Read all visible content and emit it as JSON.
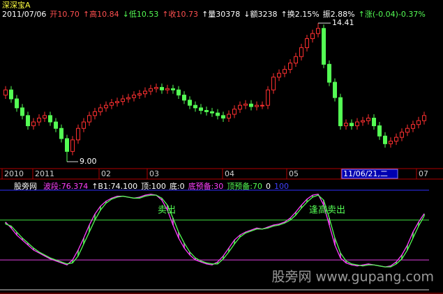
{
  "chart_data": [
    {
      "type": "candlestick",
      "title": "深深宝A",
      "info": [
        {
          "text": "2011/07/06",
          "color": "#ffffff"
        },
        {
          "text": "开10.70",
          "color": "#ff5050"
        },
        {
          "text": "↑高10.84",
          "color": "#ff5050"
        },
        {
          "text": "↓低10.53",
          "color": "#54fc54"
        },
        {
          "text": "↑收10.73",
          "color": "#ff5050"
        },
        {
          "text": "↑量30378",
          "color": "#ffffff"
        },
        {
          "text": "↓额3238",
          "color": "#ffffff"
        },
        {
          "text": "↑换2.15%",
          "color": "#ffffff"
        },
        {
          "text": "振2.88%",
          "color": "#ffffff"
        },
        {
          "text": "↑涨(-0.04)-0.37%",
          "color": "#54fc54"
        }
      ],
      "open": [
        11.6,
        11.8,
        11.45,
        11.1,
        10.8,
        10.4,
        10.55,
        10.7,
        10.8,
        10.55,
        10.3,
        9.9,
        9.4,
        9.85,
        10.3,
        10.55,
        10.8,
        10.95,
        11.1,
        11.2,
        11.3,
        11.35,
        11.45,
        11.5,
        11.6,
        11.65,
        11.75,
        11.85,
        11.9,
        11.8,
        11.85,
        11.8,
        11.6,
        11.4,
        11.2,
        11.1,
        11.0,
        10.95,
        10.9,
        10.8,
        10.7,
        10.85,
        11.05,
        11.2,
        11.25,
        11.15,
        11.2,
        11.2,
        11.8,
        12.3,
        12.45,
        12.6,
        12.85,
        13.1,
        13.45,
        13.8,
        14.0,
        14.2,
        12.8,
        12.1,
        11.5,
        10.4,
        10.5,
        10.4,
        10.55,
        10.6,
        10.7,
        10.4,
        10.0,
        9.7,
        9.8,
        9.95,
        10.15,
        10.3,
        10.45,
        10.6
      ],
      "high": [
        11.95,
        11.95,
        11.6,
        11.25,
        10.95,
        10.7,
        10.85,
        10.95,
        10.95,
        10.7,
        10.45,
        10.05,
        10.0,
        10.45,
        10.7,
        10.95,
        11.1,
        11.25,
        11.35,
        11.45,
        11.5,
        11.6,
        11.65,
        11.75,
        11.8,
        11.9,
        12.0,
        12.05,
        12.05,
        12.0,
        12.0,
        11.95,
        11.75,
        11.55,
        11.35,
        11.25,
        11.15,
        11.1,
        11.05,
        10.95,
        11.0,
        11.2,
        11.35,
        11.4,
        11.4,
        11.35,
        11.35,
        11.95,
        12.45,
        12.6,
        12.75,
        13.0,
        13.25,
        13.6,
        13.95,
        14.15,
        14.41,
        14.35,
        12.95,
        12.25,
        11.65,
        10.65,
        10.65,
        10.7,
        10.75,
        10.85,
        10.85,
        10.55,
        10.15,
        9.95,
        10.1,
        10.3,
        10.45,
        10.6,
        10.75,
        10.95
      ],
      "low": [
        11.45,
        11.3,
        10.95,
        10.65,
        10.25,
        10.25,
        10.4,
        10.55,
        10.4,
        10.15,
        9.75,
        9.0,
        9.25,
        9.7,
        10.15,
        10.4,
        10.65,
        10.8,
        10.95,
        11.05,
        11.15,
        11.2,
        11.3,
        11.35,
        11.45,
        11.5,
        11.6,
        11.7,
        11.65,
        11.65,
        11.65,
        11.45,
        11.25,
        11.05,
        10.95,
        10.85,
        10.8,
        10.75,
        10.65,
        10.55,
        10.55,
        10.7,
        10.9,
        11.05,
        11.0,
        11.0,
        11.05,
        11.05,
        11.65,
        12.15,
        12.3,
        12.45,
        12.7,
        12.95,
        13.3,
        13.65,
        13.85,
        12.65,
        11.95,
        11.35,
        10.25,
        10.25,
        10.25,
        10.25,
        10.4,
        10.45,
        10.25,
        9.85,
        9.55,
        9.55,
        9.65,
        9.8,
        10.0,
        10.15,
        10.3,
        10.45
      ],
      "close": [
        11.8,
        11.45,
        11.1,
        10.8,
        10.4,
        10.55,
        10.7,
        10.8,
        10.55,
        10.3,
        9.9,
        9.4,
        9.85,
        10.3,
        10.55,
        10.8,
        10.95,
        11.1,
        11.2,
        11.3,
        11.35,
        11.45,
        11.5,
        11.6,
        11.65,
        11.75,
        11.85,
        11.9,
        11.8,
        11.85,
        11.8,
        11.6,
        11.4,
        11.2,
        11.1,
        11.0,
        10.95,
        10.9,
        10.8,
        10.7,
        10.85,
        11.05,
        11.2,
        11.25,
        11.15,
        11.2,
        11.2,
        11.8,
        12.3,
        12.45,
        12.6,
        12.85,
        13.1,
        13.45,
        13.8,
        14.0,
        14.2,
        12.8,
        12.1,
        11.5,
        10.4,
        10.5,
        10.4,
        10.55,
        10.6,
        10.7,
        10.4,
        10.0,
        9.7,
        9.8,
        9.95,
        10.15,
        10.3,
        10.45,
        10.6,
        10.8
      ],
      "up_color": "#ff3030",
      "down_color": "#54fc54",
      "ylim": [
        8.73,
        14.82
      ],
      "max_label": "14.41",
      "min_label": "9.00",
      "x_labels": [
        "2010",
        "2011",
        "02",
        "03",
        "04",
        "05",
        "11/06/21,二",
        "07"
      ]
    },
    {
      "type": "line",
      "title": "股旁网",
      "header": [
        {
          "text": "波段:76.374",
          "color": "#ff40ff"
        },
        {
          "text": "↑B1:74.100",
          "color": "#ffffff"
        },
        {
          "text": "顶:100",
          "color": "#ffffff"
        },
        {
          "text": "底:0",
          "color": "#ffffff"
        },
        {
          "text": "底预备:30",
          "color": "#ff40ff"
        },
        {
          "text": "顶预备:70",
          "color": "#54fc54"
        },
        {
          "text": "0",
          "color": "#ffffff"
        },
        {
          "text": "100",
          "color": "#4040ff"
        }
      ],
      "series": [
        {
          "name": "波段",
          "color": "#ff40ff",
          "values": [
            68,
            62,
            55,
            50,
            45,
            40,
            37,
            34,
            31,
            29,
            27,
            25,
            30,
            40,
            52,
            65,
            76,
            84,
            89,
            92,
            94,
            94,
            93,
            92,
            93,
            95,
            96,
            95,
            90,
            80,
            65,
            52,
            42,
            35,
            30,
            28,
            26,
            25,
            28,
            34,
            42,
            50,
            55,
            58,
            60,
            62,
            61,
            63,
            65,
            66,
            68,
            72,
            78,
            85,
            91,
            95,
            96,
            85,
            65,
            45,
            32,
            27,
            25,
            24,
            25,
            26,
            25,
            24,
            23,
            24,
            28,
            35,
            45,
            58,
            68,
            76.374
          ]
        },
        {
          "name": "B1",
          "color": "#54fc54",
          "values": [
            66,
            64,
            58,
            52,
            47,
            42,
            38,
            35,
            32,
            30,
            28,
            26,
            27,
            34,
            46,
            58,
            70,
            80,
            87,
            91,
            93,
            94,
            93,
            92,
            92,
            94,
            95,
            95,
            92,
            85,
            72,
            58,
            47,
            38,
            32,
            29,
            27,
            26,
            26,
            31,
            38,
            46,
            53,
            57,
            59,
            61,
            61,
            62,
            64,
            65,
            67,
            70,
            75,
            82,
            88,
            93,
            95,
            90,
            72,
            52,
            37,
            29,
            26,
            25,
            24,
            25,
            25,
            24,
            23,
            23,
            26,
            31,
            40,
            52,
            64,
            74.1
          ]
        }
      ],
      "ref_lines": [
        {
          "value": 100,
          "color": "#3030ff"
        },
        {
          "value": 70,
          "color": "#40e040"
        },
        {
          "value": 30,
          "color": "#e040e0"
        },
        {
          "value": 0,
          "color": "#d0d0d0"
        }
      ],
      "ylim": [
        -2.8,
        107.7
      ],
      "annotations": [
        "卖出",
        "逢高卖出"
      ]
    }
  ],
  "watermark": "股旁网  www.gupang.com"
}
